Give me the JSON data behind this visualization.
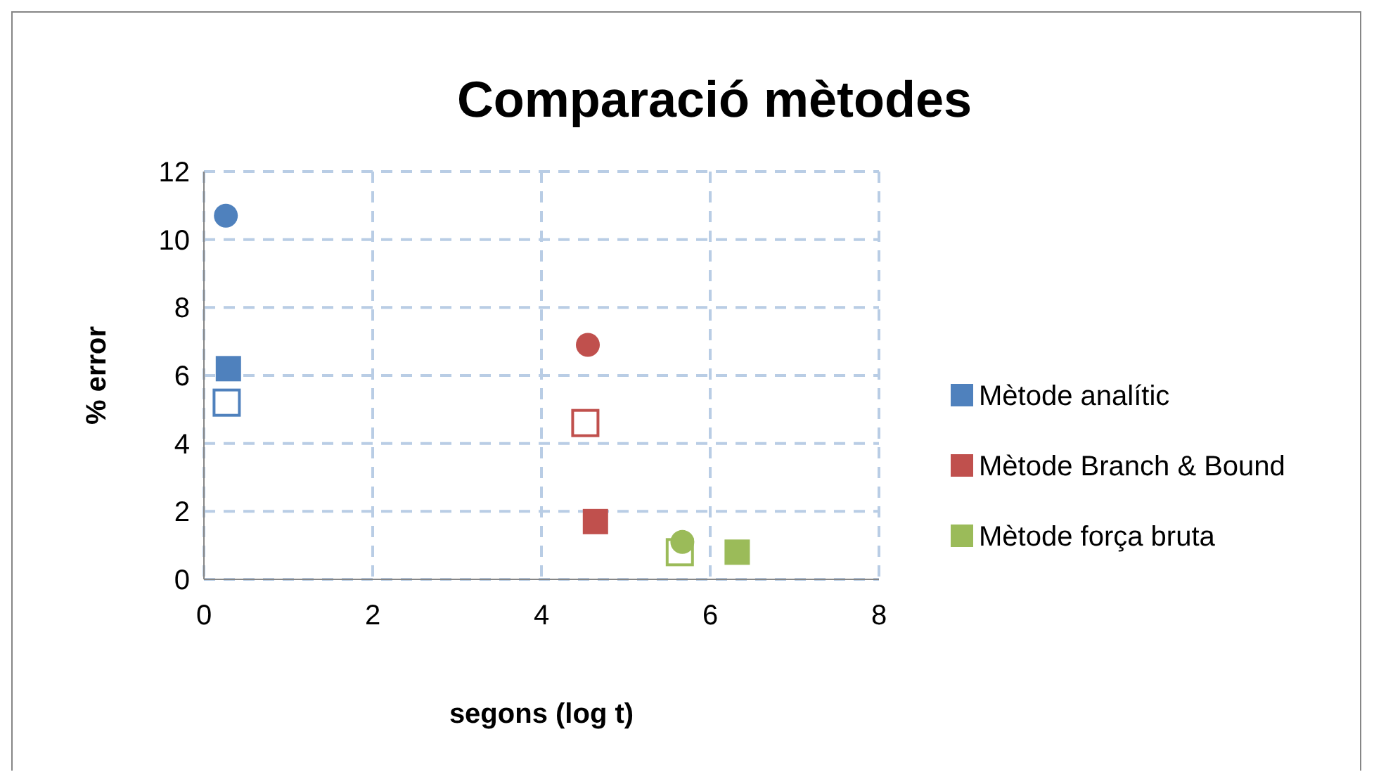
{
  "chart_data": {
    "type": "scatter",
    "title": "Comparació mètodes",
    "xlabel": "segons (log t)",
    "ylabel": "% error",
    "xlim": [
      0,
      8
    ],
    "xticks": [
      0,
      2,
      4,
      6,
      8
    ],
    "ylim": [
      0,
      12
    ],
    "yticks": [
      0,
      2,
      4,
      6,
      8,
      10,
      12
    ],
    "grid": true,
    "legend": "right",
    "series": [
      {
        "name": "Mètode analític",
        "color": "#4f81bd",
        "marker": "square",
        "x": [
          0.29
        ],
        "values": [
          6.2
        ]
      },
      {
        "name": "Mètode Branch & Bound",
        "color": "#c0504d",
        "marker": "square",
        "x": [
          4.64
        ],
        "values": [
          1.7
        ]
      },
      {
        "name": "Mètode força bruta",
        "color": "#9bbb59",
        "marker": "square",
        "x": [
          6.32
        ],
        "values": [
          0.8
        ]
      },
      {
        "color": "#4f81bd",
        "marker": "circle",
        "x": [
          0.26
        ],
        "values": [
          10.7
        ]
      },
      {
        "color": "#4f81bd",
        "marker": "square-open",
        "x": [
          0.27
        ],
        "values": [
          5.2
        ]
      },
      {
        "color": "#c0504d",
        "marker": "circle",
        "x": [
          4.55
        ],
        "values": [
          6.9
        ]
      },
      {
        "color": "#c0504d",
        "marker": "square-open",
        "x": [
          4.52
        ],
        "values": [
          4.6
        ]
      },
      {
        "color": "#9bbb59",
        "marker": "square-open",
        "x": [
          5.64
        ],
        "values": [
          0.8
        ]
      },
      {
        "color": "#9bbb59",
        "marker": "circle",
        "x": [
          5.67
        ],
        "values": [
          1.1
        ]
      }
    ]
  }
}
